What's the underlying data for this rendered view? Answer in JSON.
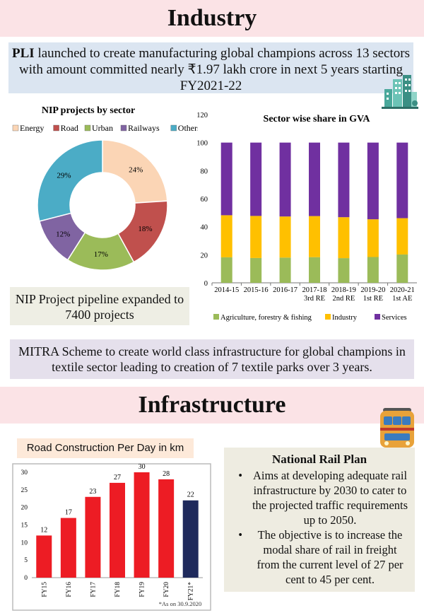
{
  "sections": {
    "industry_title": "Industry",
    "infrastructure_title": "Infrastructure"
  },
  "pli": {
    "bold": "PLI",
    "text": " launched to create manufacturing global champions  across 13 sectors with amount committed nearly ₹1.97 lakh crore in next 5 years starting FY2021-22"
  },
  "nip_pipeline_text": "NIP Project pipeline expanded to 7400 projects",
  "mitra_text": "MITRA Scheme to create world class infrastructure for global champions in textile sector leading to creation of 7 textile parks over 3 years.",
  "road_title": "Road Construction Per Day in km",
  "rail": {
    "title": "National Rail Plan",
    "points": [
      "Aims at developing adequate rail infrastructure by 2030 to cater to the projected traffic requirements up to 2050.",
      "The objective is to increase the modal share of rail in freight from the current level of 27 per cent to 45 per cent."
    ]
  },
  "icons": [
    "buildings-icon",
    "train-icon"
  ],
  "chart_data": [
    {
      "type": "pie",
      "title": "NIP projects by sector",
      "labels": [
        "Energy",
        "Road",
        "Urban",
        "Railways",
        "Others"
      ],
      "values": [
        24,
        18,
        17,
        12,
        29
      ],
      "value_labels": [
        "24%",
        "18%",
        "17%",
        "12%",
        "29%"
      ],
      "colors": [
        "#fbd5b5",
        "#c0504d",
        "#9bbb59",
        "#8064a2",
        "#4bacc6"
      ],
      "legend": "top",
      "donut": true
    },
    {
      "type": "bar",
      "stacked": true,
      "title": "Sector wise share in GVA",
      "categories": [
        "2014-15",
        "2015-16",
        "2016-17",
        "2017-18 3rd RE",
        "2018-19 2nd RE",
        "2019-20 1st RE",
        "2020-21 1st AE"
      ],
      "category_lines": [
        [
          "2014-15"
        ],
        [
          "2015-16"
        ],
        [
          "2016-17"
        ],
        [
          "2017-18",
          "3rd RE"
        ],
        [
          "2018-19",
          "2nd RE"
        ],
        [
          "2019-20",
          "1st RE"
        ],
        [
          "2020-21",
          "1st AE"
        ]
      ],
      "series": [
        {
          "name": "Agriculture, forestry & fishing",
          "color": "#9bbb59",
          "values": [
            18.2,
            17.7,
            18.0,
            18.3,
            17.6,
            18.4,
            20.2
          ]
        },
        {
          "name": "Industry",
          "color": "#ffc000",
          "values": [
            30.0,
            30.0,
            29.3,
            29.3,
            29.2,
            26.9,
            25.9
          ]
        },
        {
          "name": "Services",
          "color": "#7030a0",
          "values": [
            51.8,
            52.3,
            52.7,
            52.4,
            53.2,
            54.7,
            53.9
          ]
        }
      ],
      "ylim": [
        0,
        120
      ],
      "yticks": [
        0,
        20,
        40,
        60,
        80,
        100,
        120
      ],
      "legend": "bottom"
    },
    {
      "type": "bar",
      "categories": [
        "FY15",
        "FY16",
        "FY17",
        "FY18",
        "FY19",
        "FY20",
        "FY21*"
      ],
      "values": [
        12,
        17,
        23,
        27,
        30,
        28,
        22
      ],
      "colors": [
        "#ed1c24",
        "#ed1c24",
        "#ed1c24",
        "#ed1c24",
        "#ed1c24",
        "#ed1c24",
        "#1f2a5c"
      ],
      "ylim": [
        0,
        30
      ],
      "yticks": [
        0,
        5,
        10,
        15,
        20,
        25,
        30
      ],
      "note": "*As on 30.9.2020"
    }
  ]
}
